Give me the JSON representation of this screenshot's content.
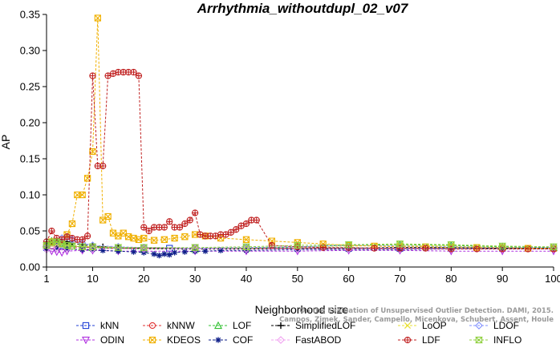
{
  "chart_data": {
    "type": "line",
    "title": "Arrhythmia_withoutdupl_02_v07",
    "xlabel": "Neighborhood size",
    "ylabel": "AP",
    "xlim": [
      1,
      100
    ],
    "ylim": [
      0,
      0.35
    ],
    "x_ticks": [
      "1",
      "10",
      "20",
      "30",
      "40",
      "50",
      "60",
      "70",
      "80",
      "90",
      "100"
    ],
    "y_ticks": [
      "0.00",
      "0.05",
      "0.10",
      "0.15",
      "0.20",
      "0.25",
      "0.30",
      "0.35"
    ],
    "grid": false,
    "legend_position": "bottom",
    "credit": "Campos, Zimek, Sander, Campello, Micenkova, Schubert, Assent, Houle",
    "credit_line1": "On the Evaluation of Unsupervised Outlier Detection. DAMI, 2015.",
    "series": [
      {
        "name": "kNN",
        "color": "#1f3fd6",
        "marker": "square",
        "x": [
          1,
          2,
          3,
          4,
          5,
          8,
          10,
          15,
          20,
          25,
          30,
          40,
          50,
          60,
          70,
          80,
          90,
          100
        ],
        "y": [
          0.027,
          0.03,
          0.031,
          0.03,
          0.029,
          0.028,
          0.027,
          0.027,
          0.026,
          0.026,
          0.026,
          0.026,
          0.026,
          0.026,
          0.026,
          0.026,
          0.026,
          0.026
        ]
      },
      {
        "name": "kNNW",
        "color": "#e03030",
        "marker": "circle",
        "x": [
          1,
          2,
          3,
          5,
          10,
          15,
          20,
          30,
          40,
          50,
          60,
          70,
          80,
          90,
          100
        ],
        "y": [
          0.028,
          0.029,
          0.029,
          0.028,
          0.027,
          0.026,
          0.026,
          0.026,
          0.026,
          0.026,
          0.025,
          0.025,
          0.025,
          0.025,
          0.025
        ]
      },
      {
        "name": "LOF",
        "color": "#30c030",
        "marker": "triangle",
        "x": [
          1,
          2,
          3,
          4,
          5,
          6,
          8,
          10,
          15,
          20,
          30,
          40,
          50,
          60,
          70,
          80,
          90,
          100
        ],
        "y": [
          0.032,
          0.036,
          0.035,
          0.033,
          0.031,
          0.029,
          0.028,
          0.027,
          0.026,
          0.025,
          0.025,
          0.026,
          0.028,
          0.03,
          0.031,
          0.03,
          0.028,
          0.027
        ]
      },
      {
        "name": "SimplifiedLOF",
        "color": "#000000",
        "marker": "plus",
        "x": [
          1,
          2,
          3,
          4,
          5,
          6,
          8,
          10,
          12,
          15,
          20,
          30,
          40,
          50,
          60,
          70,
          80,
          90,
          100
        ],
        "y": [
          0.03,
          0.034,
          0.036,
          0.037,
          0.035,
          0.033,
          0.031,
          0.029,
          0.028,
          0.027,
          0.026,
          0.025,
          0.025,
          0.026,
          0.026,
          0.027,
          0.027,
          0.026,
          0.026
        ]
      },
      {
        "name": "LoOP",
        "color": "#e8e030",
        "marker": "cross",
        "x": [
          1,
          3,
          5,
          10,
          20,
          30,
          40,
          50,
          60,
          70,
          80,
          90,
          100
        ],
        "y": [
          0.028,
          0.03,
          0.03,
          0.028,
          0.027,
          0.026,
          0.027,
          0.028,
          0.029,
          0.03,
          0.029,
          0.027,
          0.026
        ]
      },
      {
        "name": "LDOF",
        "color": "#8090ff",
        "marker": "diamond",
        "x": [
          1,
          2,
          3,
          4,
          5,
          6,
          8,
          10,
          15,
          20,
          30,
          40,
          50,
          60,
          70,
          80,
          90,
          100
        ],
        "y": [
          0.028,
          0.034,
          0.036,
          0.04,
          0.042,
          0.038,
          0.033,
          0.03,
          0.028,
          0.027,
          0.026,
          0.027,
          0.028,
          0.03,
          0.029,
          0.028,
          0.027,
          0.027
        ]
      },
      {
        "name": "ODIN",
        "color": "#b030e0",
        "marker": "triangle-down",
        "x": [
          1,
          2,
          3,
          4,
          5,
          8,
          10,
          15,
          20,
          30,
          40,
          50,
          60,
          70,
          80,
          90,
          100
        ],
        "y": [
          0.024,
          0.022,
          0.021,
          0.02,
          0.022,
          0.023,
          0.023,
          0.022,
          0.022,
          0.022,
          0.022,
          0.022,
          0.023,
          0.023,
          0.022,
          0.022,
          0.022
        ]
      },
      {
        "name": "KDEOS",
        "color": "#f0b000",
        "marker": "square-x",
        "x": [
          1,
          2,
          3,
          4,
          5,
          6,
          7,
          8,
          9,
          10,
          11,
          12,
          13,
          14,
          15,
          16,
          17,
          18,
          19,
          20,
          22,
          24,
          26,
          28,
          30,
          32,
          35,
          40,
          45,
          50,
          55,
          60,
          65,
          70,
          75,
          80,
          85,
          90,
          95,
          100
        ],
        "y": [
          0.03,
          0.035,
          0.03,
          0.032,
          0.045,
          0.06,
          0.1,
          0.1,
          0.123,
          0.16,
          0.345,
          0.065,
          0.07,
          0.047,
          0.043,
          0.047,
          0.042,
          0.04,
          0.038,
          0.04,
          0.037,
          0.038,
          0.04,
          0.042,
          0.045,
          0.043,
          0.04,
          0.038,
          0.036,
          0.034,
          0.032,
          0.03,
          0.029,
          0.028,
          0.028,
          0.027,
          0.027,
          0.027,
          0.026,
          0.026
        ]
      },
      {
        "name": "COF",
        "color": "#10208a",
        "marker": "asterisk",
        "x": [
          1,
          3,
          5,
          8,
          10,
          12,
          15,
          18,
          20,
          22,
          23,
          24,
          25,
          26,
          28,
          30,
          32,
          35,
          40,
          50,
          60,
          70,
          80,
          90,
          100
        ],
        "y": [
          0.025,
          0.026,
          0.025,
          0.024,
          0.024,
          0.023,
          0.022,
          0.021,
          0.02,
          0.018,
          0.016,
          0.018,
          0.017,
          0.02,
          0.021,
          0.022,
          0.022,
          0.023,
          0.023,
          0.024,
          0.024,
          0.024,
          0.025,
          0.025,
          0.025
        ]
      },
      {
        "name": "FastABOD",
        "color": "#f0a0f0",
        "marker": "diamond",
        "x": [
          1,
          3,
          5,
          10,
          20,
          30,
          40,
          50,
          60,
          70,
          80,
          90,
          100
        ],
        "y": [
          0.025,
          0.027,
          0.026,
          0.025,
          0.025,
          0.025,
          0.025,
          0.025,
          0.025,
          0.025,
          0.025,
          0.025,
          0.025
        ]
      },
      {
        "name": "LDF",
        "color": "#c02020",
        "marker": "circle-plus",
        "x": [
          1,
          2,
          3,
          4,
          5,
          6,
          7,
          8,
          9,
          10,
          11,
          12,
          13,
          14,
          15,
          16,
          17,
          18,
          19,
          20,
          21,
          22,
          23,
          24,
          25,
          26,
          27,
          28,
          29,
          30,
          31,
          32,
          33,
          34,
          35,
          36,
          37,
          38,
          39,
          40,
          41,
          42,
          45,
          50,
          55,
          60,
          65,
          70,
          75,
          80,
          85,
          90,
          95,
          100
        ],
        "y": [
          0.035,
          0.05,
          0.04,
          0.038,
          0.042,
          0.04,
          0.038,
          0.038,
          0.043,
          0.265,
          0.14,
          0.14,
          0.265,
          0.268,
          0.27,
          0.27,
          0.27,
          0.27,
          0.265,
          0.055,
          0.05,
          0.055,
          0.055,
          0.055,
          0.063,
          0.055,
          0.055,
          0.06,
          0.065,
          0.075,
          0.045,
          0.043,
          0.043,
          0.043,
          0.045,
          0.045,
          0.048,
          0.052,
          0.057,
          0.06,
          0.065,
          0.065,
          0.03,
          0.028,
          0.027,
          0.027,
          0.026,
          0.026,
          0.026,
          0.025,
          0.025,
          0.025,
          0.025,
          0.025
        ]
      },
      {
        "name": "INFLO",
        "color": "#90d040",
        "marker": "hourglass",
        "x": [
          1,
          2,
          3,
          4,
          5,
          6,
          8,
          10,
          15,
          20,
          30,
          40,
          50,
          60,
          70,
          80,
          90,
          100
        ],
        "y": [
          0.03,
          0.034,
          0.035,
          0.032,
          0.03,
          0.029,
          0.028,
          0.028,
          0.027,
          0.027,
          0.027,
          0.028,
          0.03,
          0.031,
          0.032,
          0.031,
          0.029,
          0.028
        ]
      }
    ]
  }
}
